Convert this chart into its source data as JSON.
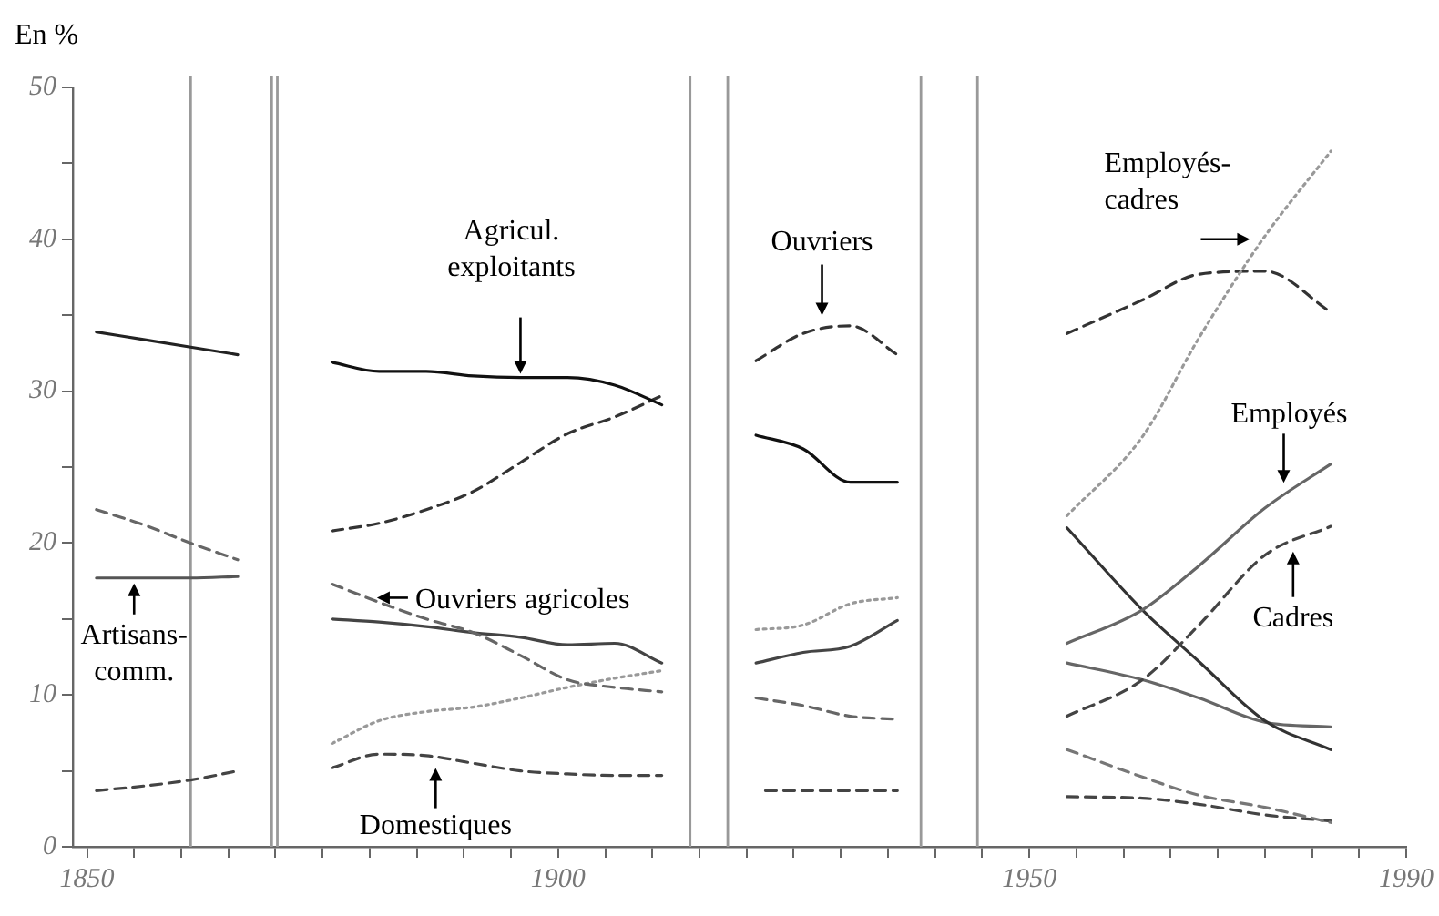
{
  "chart_data": {
    "type": "line",
    "ylabel": "En %",
    "xlim": [
      1848.5,
      1990
    ],
    "ylim": [
      0,
      50
    ],
    "xticks": [
      1850,
      {
        "value": 1855,
        "label": null
      },
      {
        "value": 1860,
        "label": null
      },
      {
        "value": 1865,
        "label": null
      },
      {
        "value": 1870,
        "label": null
      },
      {
        "value": 1875,
        "label": null
      },
      {
        "value": 1880,
        "label": null
      },
      {
        "value": 1885,
        "label": null
      },
      {
        "value": 1890,
        "label": null
      },
      {
        "value": 1895,
        "label": null
      },
      1900,
      {
        "value": 1905,
        "label": null
      },
      {
        "value": 1910,
        "label": null
      },
      {
        "value": 1915,
        "label": null
      },
      {
        "value": 1920,
        "label": null
      },
      {
        "value": 1925,
        "label": null
      },
      {
        "value": 1930,
        "label": null
      },
      {
        "value": 1935,
        "label": null
      },
      {
        "value": 1940,
        "label": null
      },
      {
        "value": 1945,
        "label": null
      },
      1950,
      {
        "value": 1955,
        "label": null
      },
      {
        "value": 1960,
        "label": null
      },
      {
        "value": 1965,
        "label": null
      },
      {
        "value": 1970,
        "label": null
      },
      {
        "value": 1975,
        "label": null
      },
      {
        "value": 1980,
        "label": null
      },
      {
        "value": 1985,
        "label": null
      },
      1990
    ],
    "yticks": [
      0,
      {
        "value": 5,
        "label": null
      },
      10,
      {
        "value": 15,
        "label": null
      },
      20,
      {
        "value": 25,
        "label": null
      },
      30,
      {
        "value": 35,
        "label": null
      },
      40,
      {
        "value": 45,
        "label": null
      },
      50
    ],
    "grid": false,
    "legend": false,
    "marker": "none",
    "series": [
      {
        "color": "#222222",
        "line_style": "solid",
        "x": [
          1851,
          1856,
          1861,
          1866
        ],
        "values": [
          33.9,
          33.4,
          32.9,
          32.4
        ]
      },
      {
        "color": "#666666",
        "line_style": "dashed",
        "x": [
          1851,
          1856,
          1861,
          1866
        ],
        "values": [
          22.2,
          21.2,
          20.0,
          18.9
        ]
      },
      {
        "color": "#555555",
        "line_style": "solid",
        "x": [
          1851,
          1856,
          1861,
          1866
        ],
        "values": [
          17.7,
          17.7,
          17.7,
          17.8
        ]
      },
      {
        "color": "#444444",
        "line_style": "dashed",
        "x": [
          1851,
          1856,
          1861,
          1866
        ],
        "values": [
          3.7,
          4.0,
          4.4,
          5.0
        ]
      },
      {
        "color": "#111111",
        "line_style": "solid",
        "x": [
          1876,
          1881,
          1886,
          1891,
          1896,
          1901,
          1906,
          1911
        ],
        "values": [
          31.9,
          31.3,
          31.3,
          31.0,
          30.9,
          30.9,
          30.4,
          29.1
        ]
      },
      {
        "color": "#333333",
        "line_style": "dashed",
        "x": [
          1876,
          1881,
          1886,
          1891,
          1896,
          1901,
          1906,
          1911
        ],
        "values": [
          20.8,
          21.3,
          22.2,
          23.4,
          25.3,
          27.2,
          28.3,
          29.7
        ]
      },
      {
        "color": "#666666",
        "line_style": "dashed",
        "x": [
          1876,
          1881,
          1886,
          1891,
          1896,
          1901,
          1906,
          1911
        ],
        "values": [
          17.3,
          16.1,
          15.0,
          14.1,
          12.6,
          11.0,
          10.5,
          10.2
        ]
      },
      {
        "color": "#444444",
        "line_style": "solid",
        "x": [
          1876,
          1881,
          1886,
          1891,
          1896,
          1901,
          1906,
          1911
        ],
        "values": [
          15.0,
          14.8,
          14.5,
          14.1,
          13.8,
          13.3,
          13.4,
          12.1
        ]
      },
      {
        "color": "#999999",
        "line_style": "dotted",
        "x": [
          1876,
          1881,
          1886,
          1891,
          1896,
          1901,
          1906,
          1911
        ],
        "values": [
          6.8,
          8.3,
          8.9,
          9.2,
          9.8,
          10.5,
          11.1,
          11.6
        ]
      },
      {
        "color": "#444444",
        "line_style": "dashed",
        "x": [
          1876,
          1881,
          1886,
          1891,
          1896,
          1901,
          1906,
          1911
        ],
        "values": [
          5.2,
          6.1,
          6.0,
          5.5,
          5.0,
          4.8,
          4.7,
          4.7
        ]
      },
      {
        "color": "#333333",
        "line_style": "dashed",
        "x": [
          1921,
          1926,
          1931,
          1936
        ],
        "values": [
          32.0,
          33.8,
          34.3,
          32.4
        ]
      },
      {
        "color": "#111111",
        "line_style": "solid",
        "x": [
          1921,
          1926,
          1931,
          1936
        ],
        "values": [
          27.1,
          26.2,
          24.0,
          24.0
        ]
      },
      {
        "color": "#999999",
        "line_style": "dotted",
        "x": [
          1921,
          1926,
          1931,
          1936
        ],
        "values": [
          14.3,
          14.6,
          16.0,
          16.4
        ]
      },
      {
        "color": "#444444",
        "line_style": "solid",
        "x": [
          1921,
          1926,
          1931,
          1936
        ],
        "values": [
          12.1,
          12.8,
          13.2,
          14.9
        ]
      },
      {
        "color": "#666666",
        "line_style": "dashed",
        "x": [
          1921,
          1926,
          1931,
          1936
        ],
        "values": [
          9.8,
          9.3,
          8.6,
          8.4
        ]
      },
      {
        "color": "#444444",
        "line_style": "dashed",
        "x": [
          1922,
          1936
        ],
        "values": [
          3.7,
          3.7
        ]
      },
      {
        "color": "#999999",
        "line_style": "dotted",
        "x": [
          1954,
          1962,
          1968,
          1975,
          1982
        ],
        "values": [
          21.8,
          27.0,
          33.5,
          40.2,
          45.8
        ]
      },
      {
        "color": "#333333",
        "line_style": "dashed",
        "x": [
          1954,
          1962,
          1968,
          1975,
          1982
        ],
        "values": [
          33.8,
          36.0,
          37.7,
          37.9,
          35.2
        ]
      },
      {
        "color": "#666666",
        "line_style": "solid",
        "x": [
          1954,
          1962,
          1968,
          1975,
          1982
        ],
        "values": [
          13.4,
          15.6,
          18.5,
          22.3,
          25.2
        ]
      },
      {
        "color": "#444444",
        "line_style": "dashed",
        "x": [
          1954,
          1962,
          1968,
          1975,
          1982
        ],
        "values": [
          8.6,
          11.0,
          14.6,
          19.2,
          21.1
        ]
      },
      {
        "color": "#333333",
        "line_style": "solid",
        "x": [
          1954,
          1962,
          1968,
          1975,
          1982
        ],
        "values": [
          21.0,
          15.6,
          12.2,
          8.3,
          6.4
        ]
      },
      {
        "color": "#666666",
        "line_style": "solid",
        "x": [
          1954,
          1962,
          1968,
          1975,
          1982
        ],
        "values": [
          12.1,
          11.0,
          9.8,
          8.2,
          7.9
        ]
      },
      {
        "color": "#777777",
        "line_style": "dashed",
        "x": [
          1954,
          1962,
          1968,
          1975,
          1982
        ],
        "values": [
          6.4,
          4.6,
          3.4,
          2.6,
          1.6
        ]
      },
      {
        "color": "#444444",
        "line_style": "dashed",
        "x": [
          1954,
          1962,
          1968,
          1975,
          1982
        ],
        "values": [
          3.3,
          3.2,
          2.8,
          2.1,
          1.7
        ]
      }
    ],
    "ref_lines": [
      {
        "axis": "x",
        "value": 1861,
        "color": "#999999"
      },
      {
        "axis": "x",
        "value": 1869.6,
        "color": "#999999"
      },
      {
        "axis": "x",
        "value": 1870.2,
        "color": "#999999"
      },
      {
        "axis": "x",
        "value": 1914,
        "color": "#999999"
      },
      {
        "axis": "x",
        "value": 1918,
        "color": "#999999"
      },
      {
        "axis": "x",
        "value": 1938.5,
        "color": "#999999"
      },
      {
        "axis": "x",
        "value": 1944.5,
        "color": "#999999"
      }
    ],
    "annotations": [
      {
        "text": "Artisans-comm.",
        "x": 1855,
        "y": 17.7
      },
      {
        "text": "Agricul. exploitants",
        "x": 1896,
        "y": 30.9
      },
      {
        "text": "Ouvriers agricoles",
        "x": 1880,
        "y": 16.4
      },
      {
        "text": "Domestiques",
        "x": 1887,
        "y": 5.9
      },
      {
        "text": "Ouvriers",
        "x": 1928,
        "y": 34.5
      },
      {
        "text": "Employés-cadres",
        "x": 1974,
        "y": 40
      },
      {
        "text": "Employés",
        "x": 1977,
        "y": 23.6
      },
      {
        "text": "Cadres",
        "x": 1978,
        "y": 19.8
      }
    ]
  }
}
